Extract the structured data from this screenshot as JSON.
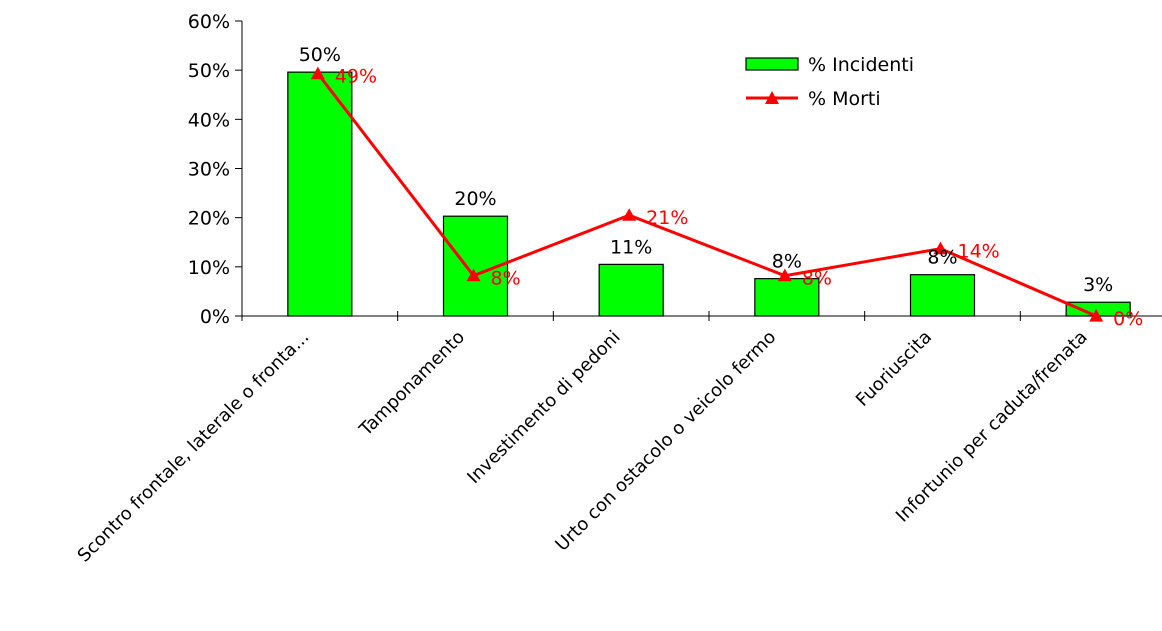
{
  "chart_data": {
    "type": "bar",
    "title": "",
    "xlabel": "",
    "ylabel": "",
    "ylim": [
      0,
      60
    ],
    "yticks": [
      "0%",
      "10%",
      "20%",
      "30%",
      "40%",
      "50%",
      "60%"
    ],
    "grid": false,
    "legend_position": "top-right",
    "categories": [
      "Scontro frontale, laterale o fronta...",
      "Tamponamento",
      "Investimento di pedoni",
      "Urto con ostacolo o veicolo fermo",
      "Fuoriuscita",
      "Infortunio per caduta/frenata"
    ],
    "series": [
      {
        "name": "% Incidenti",
        "type": "bar",
        "color": "#00ff00",
        "values": [
          49.6,
          20.3,
          10.5,
          7.6,
          8.4,
          2.8
        ],
        "labels": [
          "50%",
          "20%",
          "11%",
          "8%",
          "8%",
          "3%"
        ]
      },
      {
        "name": "% Morti",
        "type": "line",
        "marker": "triangle",
        "color": "#ff0000",
        "values": [
          49.3,
          8.2,
          20.5,
          8.2,
          13.7,
          0.0
        ],
        "labels": [
          "49%",
          "8%",
          "21%",
          "8%",
          "14%",
          "0%"
        ]
      }
    ]
  }
}
